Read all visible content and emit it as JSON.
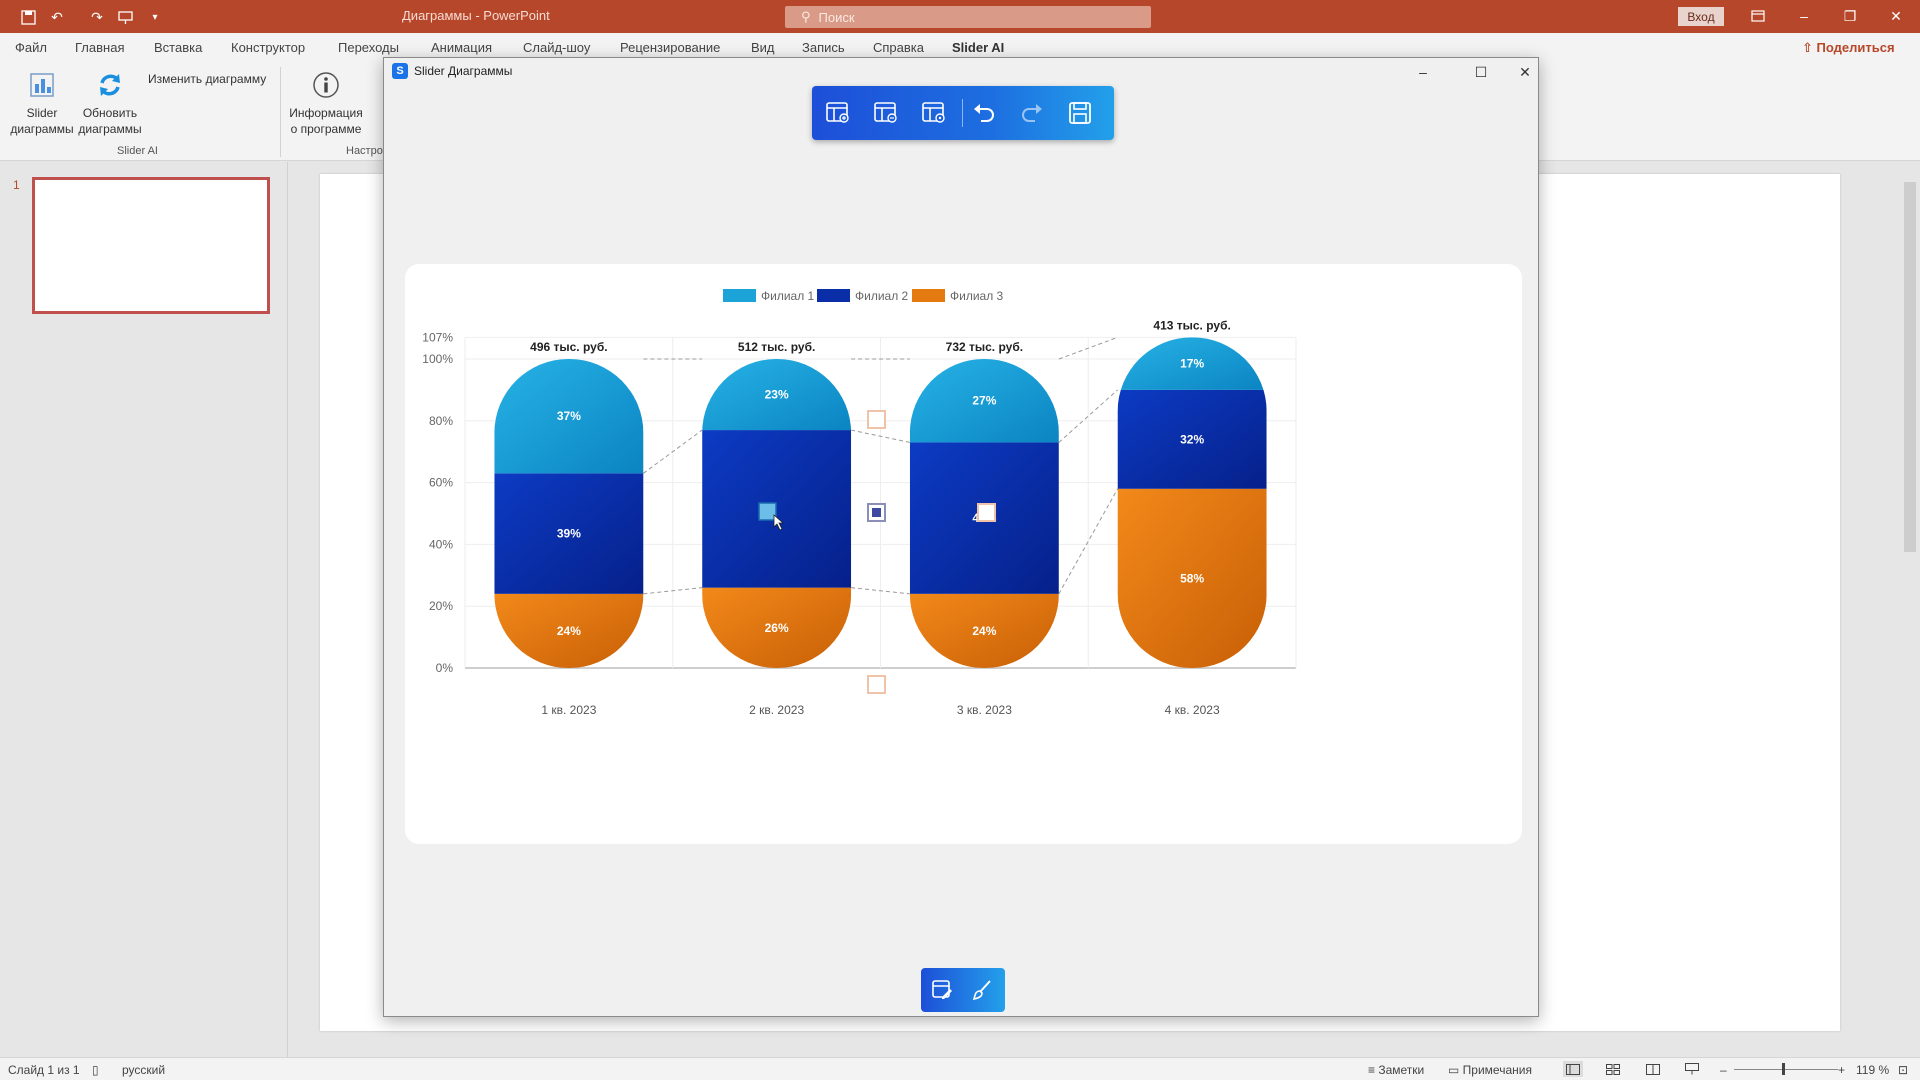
{
  "titlebar": {
    "doc_title": "Диаграммы - PowerPoint",
    "search_placeholder": "Поиск",
    "signin_label": "Вход"
  },
  "menu": {
    "tabs": [
      "Файл",
      "Главная",
      "Вставка",
      "Конструктор",
      "Переходы",
      "Анимация",
      "Слайд-шоу",
      "Рецензирование",
      "Вид",
      "Запись",
      "Справка",
      "Slider AI"
    ],
    "share_label": "Поделиться"
  },
  "ribbon": {
    "slider_charts_label": "Slider диаграммы",
    "refresh_charts_label": "Обновить диаграммы",
    "edit_chart_label": "Изменить диаграмму",
    "group_slider_ai": "Slider AI",
    "about_label": "Информация о программе",
    "group_settings_partial": "Настро"
  },
  "slides": {
    "current_number": "1"
  },
  "dialog": {
    "title": "Slider Диаграммы"
  },
  "statusbar": {
    "slide_info": "Слайд 1 из 1",
    "language": "русский",
    "notes_label": "Заметки",
    "comments_label": "Примечания",
    "zoom_level": "119 %"
  },
  "colors": {
    "filial1": "#1ca3d8",
    "filial2": "#0a2ea8",
    "filial3": "#e57a10",
    "accent": "#b7472a"
  },
  "chart_data": {
    "type": "bar",
    "stacked": true,
    "categories": [
      "1 кв. 2023",
      "2 кв. 2023",
      "3 кв. 2023",
      "4 кв. 2023"
    ],
    "totals": [
      "496 тыс. руб.",
      "512 тыс. руб.",
      "732 тыс. руб.",
      "413 тыс. руб."
    ],
    "series": [
      {
        "name": "Филиал 3",
        "values": [
          24,
          26,
          24,
          58
        ]
      },
      {
        "name": "Филиал 2",
        "values": [
          39,
          51,
          49,
          32
        ]
      },
      {
        "name": "Филиал 1",
        "values": [
          37,
          23,
          27,
          17
        ]
      }
    ],
    "segment_labels": {
      "Филиал 1": [
        "37%",
        "23%",
        "27%",
        "17%"
      ],
      "Филиал 2": [
        "39%",
        "",
        "49%",
        "32%"
      ],
      "Филиал 3": [
        "24%",
        "26%",
        "24%",
        "58%"
      ]
    },
    "legend": [
      "Филиал 1",
      "Филиал 2",
      "Филиал 3"
    ],
    "y_ticks": [
      "0%",
      "20%",
      "40%",
      "60%",
      "80%",
      "100%",
      "107%"
    ],
    "ylim": [
      0,
      107
    ],
    "legend_position": "top-center",
    "grid": true
  }
}
